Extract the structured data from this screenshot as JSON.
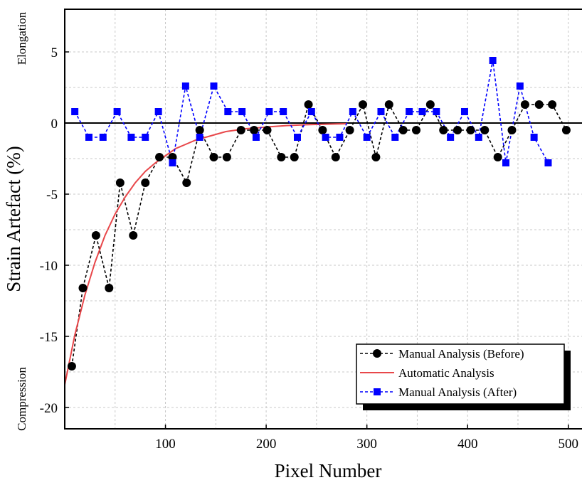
{
  "chart_data": {
    "type": "line",
    "xlabel": "Pixel Number",
    "ylabel": "Strain Artefact (%)",
    "xlim": [
      0,
      515
    ],
    "ylim": [
      -21.5,
      8
    ],
    "x_ticks": [
      100,
      200,
      300,
      400,
      500
    ],
    "y_ticks": [
      5,
      0,
      -5,
      -10,
      -15,
      -20
    ],
    "grid": true,
    "legend_position": "bottom-right",
    "side_labels": {
      "top": "Elongation",
      "bottom": "Compression"
    },
    "series": [
      {
        "name": "Manual Analysis (Before)",
        "color": "#000000",
        "style": "dashed",
        "marker": "circle",
        "x": [
          7,
          18,
          31,
          44,
          55,
          68,
          80,
          94,
          107,
          121,
          134,
          148,
          161,
          175,
          188,
          201,
          215,
          228,
          242,
          256,
          269,
          283,
          296,
          309,
          322,
          336,
          349,
          363,
          376,
          390,
          403,
          417,
          430,
          444,
          457,
          471,
          484,
          498
        ],
        "y": [
          -17.1,
          -11.6,
          -7.9,
          -11.6,
          -4.2,
          -7.9,
          -4.2,
          -2.4,
          -2.4,
          -4.2,
          -0.5,
          -2.4,
          -2.4,
          -0.5,
          -0.5,
          -0.5,
          -2.4,
          -2.4,
          1.3,
          -0.5,
          -2.4,
          -0.5,
          1.3,
          -2.4,
          1.3,
          -0.5,
          -0.5,
          1.3,
          -0.5,
          -0.5,
          -0.5,
          -0.5,
          -2.4,
          -0.5,
          1.3,
          1.3,
          1.3,
          -0.5
        ]
      },
      {
        "name": "Automatic Analysis",
        "color": "#e8474a",
        "style": "solid",
        "marker": "none",
        "x": [
          0,
          10,
          20,
          30,
          40,
          50,
          60,
          70,
          80,
          90,
          100,
          110,
          120,
          130,
          140,
          150,
          160,
          170,
          180,
          190,
          200,
          210,
          220,
          230,
          240,
          250,
          260,
          270,
          280
        ],
        "y": [
          -18.4,
          -14.9,
          -12.1,
          -9.8,
          -7.9,
          -6.4,
          -5.2,
          -4.2,
          -3.4,
          -2.8,
          -2.3,
          -1.8,
          -1.5,
          -1.2,
          -1.0,
          -0.8,
          -0.6,
          -0.5,
          -0.4,
          -0.35,
          -0.28,
          -0.23,
          -0.18,
          -0.15,
          -0.12,
          -0.1,
          -0.08,
          -0.06,
          -0.05
        ]
      },
      {
        "name": "Manual Analysis (After)",
        "color": "#0000ff",
        "style": "dashed",
        "marker": "square",
        "x": [
          10,
          24,
          38,
          52,
          66,
          80,
          93,
          107,
          120,
          134,
          148,
          162,
          176,
          190,
          203,
          217,
          231,
          245,
          259,
          273,
          286,
          300,
          314,
          328,
          342,
          355,
          369,
          383,
          397,
          411,
          425,
          438,
          452,
          466,
          480
        ],
        "y": [
          0.8,
          -1.0,
          -1.0,
          0.8,
          -1.0,
          -1.0,
          0.8,
          -2.8,
          2.6,
          -1.0,
          2.6,
          0.8,
          0.8,
          -1.0,
          0.8,
          0.8,
          -1.0,
          0.8,
          -1.0,
          -1.0,
          0.8,
          -1.0,
          0.8,
          -1.0,
          0.8,
          0.8,
          0.8,
          -1.0,
          0.8,
          -1.0,
          4.4,
          -2.8,
          2.6,
          -1.0,
          -2.8
        ]
      }
    ]
  }
}
